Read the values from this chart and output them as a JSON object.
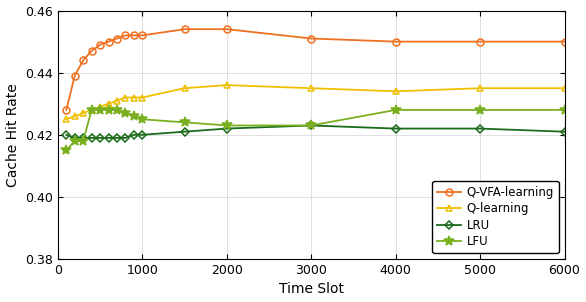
{
  "x": [
    100,
    200,
    300,
    400,
    500,
    600,
    700,
    800,
    900,
    1000,
    1500,
    2000,
    3000,
    4000,
    5000,
    6000
  ],
  "Q_VFA": [
    0.428,
    0.439,
    0.444,
    0.447,
    0.449,
    0.45,
    0.451,
    0.452,
    0.452,
    0.452,
    0.454,
    0.454,
    0.451,
    0.45,
    0.45,
    0.45
  ],
  "Q_learning": [
    0.425,
    0.426,
    0.427,
    0.428,
    0.429,
    0.43,
    0.431,
    0.432,
    0.432,
    0.432,
    0.435,
    0.436,
    0.435,
    0.434,
    0.435,
    0.435
  ],
  "LRU": [
    0.42,
    0.419,
    0.419,
    0.419,
    0.419,
    0.419,
    0.419,
    0.419,
    0.42,
    0.42,
    0.421,
    0.422,
    0.423,
    0.422,
    0.422,
    0.421
  ],
  "LFU": [
    0.415,
    0.418,
    0.418,
    0.428,
    0.428,
    0.428,
    0.428,
    0.427,
    0.426,
    0.425,
    0.424,
    0.423,
    0.423,
    0.428,
    0.428,
    0.428
  ],
  "colors": {
    "Q_VFA": "#F07020",
    "Q_learning": "#F0C000",
    "LRU": "#1A6B1A",
    "LFU": "#7AB020"
  },
  "markers": {
    "Q_VFA": "o",
    "Q_learning": "^",
    "LRU": "D",
    "LFU": "*"
  },
  "labels": {
    "Q_VFA": "Q-VFA-learning",
    "Q_learning": "Q-learning",
    "LRU": "LRU",
    "LFU": "LFU"
  },
  "xlabel": "Time Slot",
  "ylabel": "Cache Hit Rate",
  "xlim": [
    0,
    6000
  ],
  "ylim": [
    0.38,
    0.46
  ],
  "xticks": [
    0,
    1000,
    2000,
    3000,
    4000,
    5000,
    6000
  ],
  "yticks": [
    0.38,
    0.4,
    0.42,
    0.44,
    0.46
  ],
  "legend_loc": "lower right",
  "figsize": [
    5.86,
    3.02
  ],
  "dpi": 100
}
